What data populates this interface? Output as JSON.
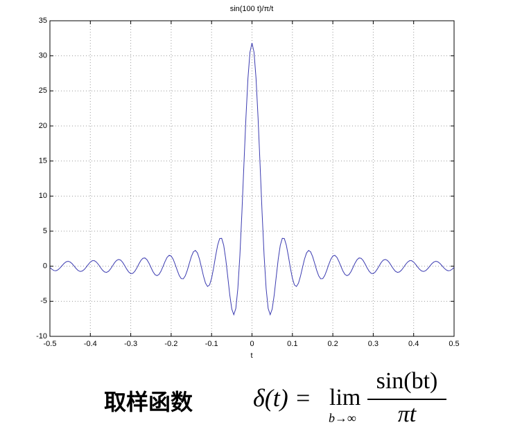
{
  "chart_data": {
    "type": "line",
    "title": "sin(100 t)/π/t",
    "x_label": "t",
    "x": [
      -0.5,
      -0.495,
      -0.49,
      -0.485,
      -0.48,
      -0.475,
      -0.47,
      -0.465,
      -0.46,
      -0.455,
      -0.45,
      -0.445,
      -0.44,
      -0.435,
      -0.43,
      -0.425,
      -0.42,
      -0.415,
      -0.41,
      -0.405,
      -0.4,
      -0.395,
      -0.39,
      -0.385,
      -0.38,
      -0.375,
      -0.37,
      -0.365,
      -0.36,
      -0.355,
      -0.35,
      -0.345,
      -0.34,
      -0.335,
      -0.33,
      -0.325,
      -0.32,
      -0.315,
      -0.31,
      -0.305,
      -0.3,
      -0.295,
      -0.29,
      -0.285,
      -0.28,
      -0.275,
      -0.27,
      -0.265,
      -0.26,
      -0.255,
      -0.25,
      -0.245,
      -0.24,
      -0.235,
      -0.23,
      -0.225,
      -0.22,
      -0.215,
      -0.21,
      -0.205,
      -0.2,
      -0.195,
      -0.19,
      -0.185,
      -0.18,
      -0.175,
      -0.17,
      -0.165,
      -0.16,
      -0.155,
      -0.15,
      -0.145,
      -0.14,
      -0.135,
      -0.13,
      -0.125,
      -0.12,
      -0.115,
      -0.11,
      -0.105,
      -0.1,
      -0.095,
      -0.09,
      -0.085,
      -0.08,
      -0.075,
      -0.07,
      -0.065,
      -0.06,
      -0.055,
      -0.05,
      -0.045,
      -0.04,
      -0.035,
      -0.03,
      -0.025,
      -0.02,
      -0.015,
      -0.01,
      -0.005,
      0,
      0.005,
      0.01,
      0.015,
      0.02,
      0.025,
      0.03,
      0.035,
      0.04,
      0.045,
      0.05,
      0.055,
      0.06,
      0.065,
      0.07,
      0.075,
      0.08,
      0.085,
      0.09,
      0.095,
      0.1,
      0.105,
      0.11,
      0.115,
      0.12,
      0.125,
      0.13,
      0.135,
      0.14,
      0.145,
      0.15,
      0.155,
      0.16,
      0.165,
      0.17,
      0.175,
      0.18,
      0.185,
      0.19,
      0.195,
      0.2,
      0.205,
      0.21,
      0.215,
      0.22,
      0.225,
      0.23,
      0.235,
      0.24,
      0.245,
      0.25,
      0.255,
      0.26,
      0.265,
      0.27,
      0.275,
      0.28,
      0.285,
      0.29,
      0.295,
      0.3,
      0.305,
      0.31,
      0.315,
      0.32,
      0.325,
      0.33,
      0.335,
      0.34,
      0.345,
      0.35,
      0.355,
      0.36,
      0.365,
      0.37,
      0.375,
      0.38,
      0.385,
      0.39,
      0.395,
      0.4,
      0.405,
      0.41,
      0.415,
      0.42,
      0.425,
      0.43,
      0.435,
      0.44,
      0.445,
      0.45,
      0.455,
      0.46,
      0.465,
      0.47,
      0.475,
      0.48,
      0.485,
      0.49,
      0.495,
      0.5
    ],
    "series": [
      {
        "color": "#3a3ab0",
        "values": [
          -0.17,
          -0.44,
          -0.62,
          -0.65,
          -0.51,
          -0.25,
          0.08,
          0.4,
          0.62,
          0.7,
          0.6,
          0.36,
          0.01,
          -0.34,
          -0.62,
          -0.75,
          -0.69,
          -0.47,
          -0.12,
          0.26,
          0.59,
          0.79,
          0.79,
          0.59,
          0.25,
          -0.17,
          -0.55,
          -0.81,
          -0.88,
          -0.73,
          -0.39,
          0.05,
          0.5,
          0.83,
          0.96,
          0.87,
          0.55,
          0.08,
          -0.41,
          -0.83,
          -1.05,
          -1.02,
          -0.73,
          -0.25,
          0.31,
          0.81,
          1.13,
          1.18,
          0.93,
          0.45,
          -0.17,
          -0.77,
          -1.2,
          -1.35,
          -1.17,
          -0.69,
          -0.01,
          0.69,
          1.27,
          1.55,
          1.45,
          0.99,
          0.25,
          -0.58,
          -1.33,
          -1.78,
          -1.8,
          -1.37,
          -0.57,
          0.42,
          1.38,
          2.05,
          2.25,
          1.9,
          1.03,
          -0.17,
          -1.42,
          -2.42,
          -2.89,
          -2.67,
          -1.73,
          -0.25,
          1.46,
          2.99,
          3.94,
          3.98,
          2.99,
          1.05,
          -1.48,
          -4.08,
          -6.1,
          -6.91,
          -6.02,
          -3.19,
          1.5,
          7.62,
          14.47,
          21.17,
          26.79,
          30.52,
          31.83,
          30.52,
          26.79,
          21.17,
          14.47,
          7.62,
          1.5,
          -3.19,
          -6.02,
          -6.91,
          -6.1,
          -4.08,
          -1.48,
          1.05,
          2.99,
          3.98,
          3.94,
          2.99,
          1.46,
          -0.25,
          -1.73,
          -2.67,
          -2.89,
          -2.42,
          -1.42,
          -0.17,
          1.03,
          1.9,
          2.25,
          2.05,
          1.38,
          0.42,
          -0.57,
          -1.37,
          -1.8,
          -1.78,
          -1.33,
          -0.58,
          0.25,
          0.99,
          1.45,
          1.55,
          1.27,
          0.69,
          -0.01,
          -0.69,
          -1.17,
          -1.35,
          -1.2,
          -0.77,
          -0.17,
          0.45,
          0.93,
          1.18,
          1.13,
          0.81,
          0.31,
          -0.25,
          -0.73,
          -1.02,
          -1.05,
          -0.83,
          -0.41,
          0.08,
          0.55,
          0.87,
          0.96,
          0.83,
          0.5,
          0.05,
          -0.39,
          -0.73,
          -0.88,
          -0.81,
          -0.55,
          -0.17,
          0.25,
          0.59,
          0.79,
          0.79,
          0.59,
          0.26,
          -0.12,
          -0.47,
          -0.69,
          -0.75,
          -0.62,
          -0.34,
          0.01,
          0.36,
          0.6,
          0.7,
          0.62,
          0.4,
          0.08,
          -0.25,
          -0.51,
          -0.65,
          -0.62,
          -0.44,
          -0.17
        ]
      }
    ],
    "xlim": [
      -0.5,
      0.5
    ],
    "xticks": [
      -0.5,
      -0.4,
      -0.3,
      -0.2,
      -0.1,
      0,
      0.1,
      0.2,
      0.3,
      0.4,
      0.5
    ],
    "ylim": [
      -10,
      35
    ],
    "yticks": [
      -10,
      -5,
      0,
      5,
      10,
      15,
      20,
      25,
      30,
      35
    ],
    "grid": true
  },
  "caption": {
    "label": "取样函数",
    "lhs": "δ(t) =",
    "lim": "lim",
    "lim_sub": "b→∞",
    "numerator": "sin(bt)",
    "denominator": "πt"
  }
}
